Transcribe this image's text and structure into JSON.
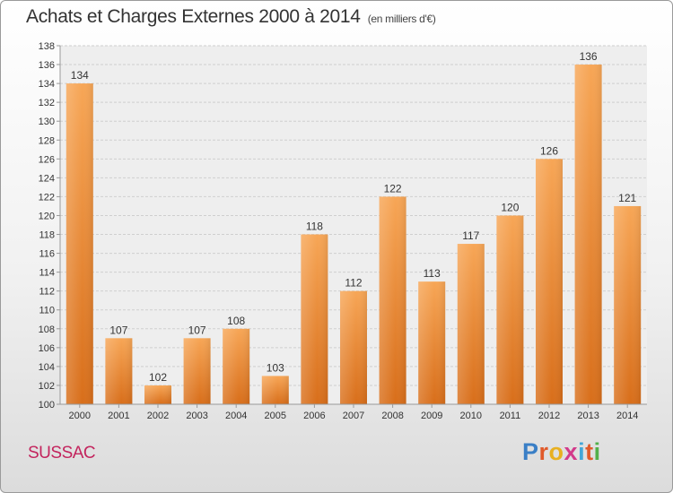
{
  "title": "Achats et Charges Externes 2000 à 2014",
  "unit_note": "(en milliers d'€)",
  "place_label": "SUSSAC",
  "logo": {
    "letters": [
      "P",
      "r",
      "o",
      "x",
      "i",
      "t",
      "i"
    ],
    "colors": [
      "#3a7fc6",
      "#e05a2a",
      "#e8b020",
      "#d23a8a",
      "#42a6d8",
      "#e05a2a",
      "#52b04a"
    ]
  },
  "chart_data": {
    "type": "bar",
    "title": "Achats et Charges Externes 2000 à 2014",
    "subtitle": "(en milliers d'€)",
    "categories": [
      "2000",
      "2001",
      "2002",
      "2003",
      "2004",
      "2005",
      "2006",
      "2007",
      "2008",
      "2009",
      "2010",
      "2011",
      "2012",
      "2013",
      "2014"
    ],
    "values": [
      134,
      107,
      102,
      107,
      108,
      103,
      118,
      112,
      122,
      113,
      117,
      120,
      126,
      136,
      121
    ],
    "data_labels": [
      "134",
      "107",
      "102",
      "107",
      "108",
      "103",
      "118",
      "112",
      "122",
      "113",
      "117",
      "120",
      "126",
      "136",
      "121"
    ],
    "ylim": [
      100,
      138
    ],
    "yticks": [
      "100",
      "102",
      "104",
      "106",
      "108",
      "110",
      "112",
      "114",
      "116",
      "118",
      "120",
      "122",
      "124",
      "126",
      "128",
      "130",
      "132",
      "134",
      "136",
      "138"
    ],
    "grid": true,
    "bar_color_top": "#f7a656",
    "bar_color_bottom": "#d86e1a",
    "xlabel": "",
    "ylabel": ""
  }
}
